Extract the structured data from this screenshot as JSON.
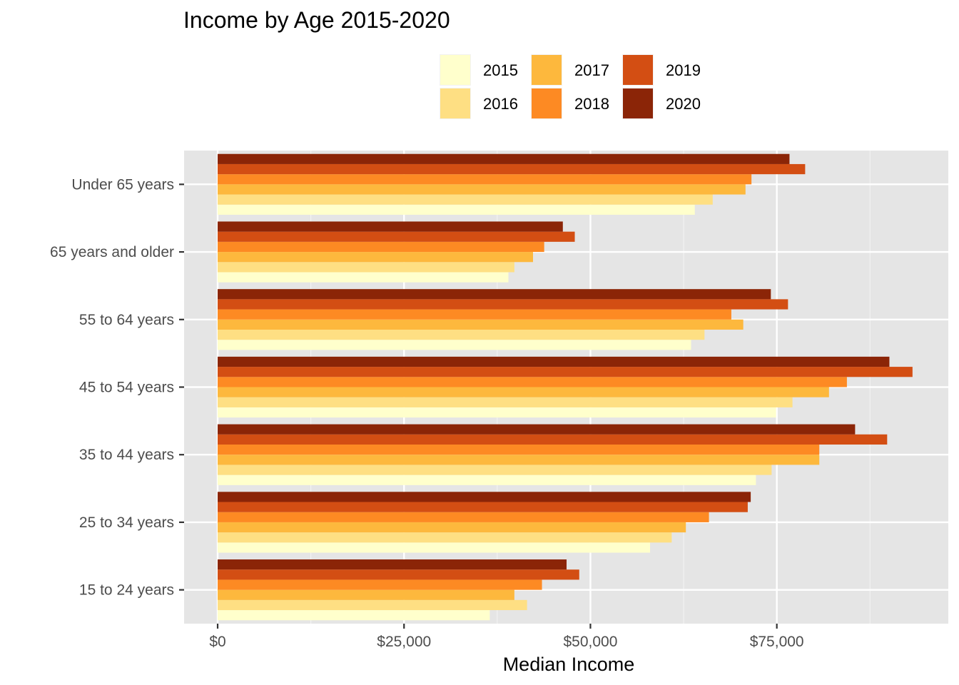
{
  "chart_data": {
    "type": "bar",
    "orientation": "horizontal",
    "title": "Income by Age 2015-2020",
    "xlabel": "Median Income",
    "ylabel": "",
    "xlim": [
      -4500,
      98000
    ],
    "x_ticks": [
      0,
      25000,
      50000,
      75000
    ],
    "x_tick_labels": [
      "$0",
      "$25,000",
      "$50,000",
      "$75,000"
    ],
    "grid": true,
    "legend_position": "top",
    "categories": [
      "15 to 24 years",
      "25 to 34 years",
      "35 to 44 years",
      "45 to 54 years",
      "55 to 64 years",
      "65 years and older",
      "Under 65 years"
    ],
    "series": [
      {
        "name": "2015",
        "color": "#FFFFCC",
        "values": [
          36500,
          58000,
          72200,
          74900,
          63500,
          39000,
          64000
        ]
      },
      {
        "name": "2016",
        "color": "#FEDF83",
        "values": [
          41500,
          60900,
          74300,
          77100,
          65300,
          39800,
          66400
        ]
      },
      {
        "name": "2017",
        "color": "#FDB83D",
        "values": [
          39800,
          62800,
          80700,
          82000,
          70500,
          42300,
          70800
        ]
      },
      {
        "name": "2018",
        "color": "#FD8A23",
        "values": [
          43500,
          65900,
          80700,
          84400,
          68900,
          43800,
          71600
        ]
      },
      {
        "name": "2019",
        "color": "#D34E13",
        "values": [
          48500,
          71100,
          89800,
          93200,
          76500,
          47900,
          78800
        ]
      },
      {
        "name": "2020",
        "color": "#8B2507",
        "values": [
          46800,
          71500,
          85500,
          90100,
          74200,
          46300,
          76700
        ]
      }
    ]
  }
}
